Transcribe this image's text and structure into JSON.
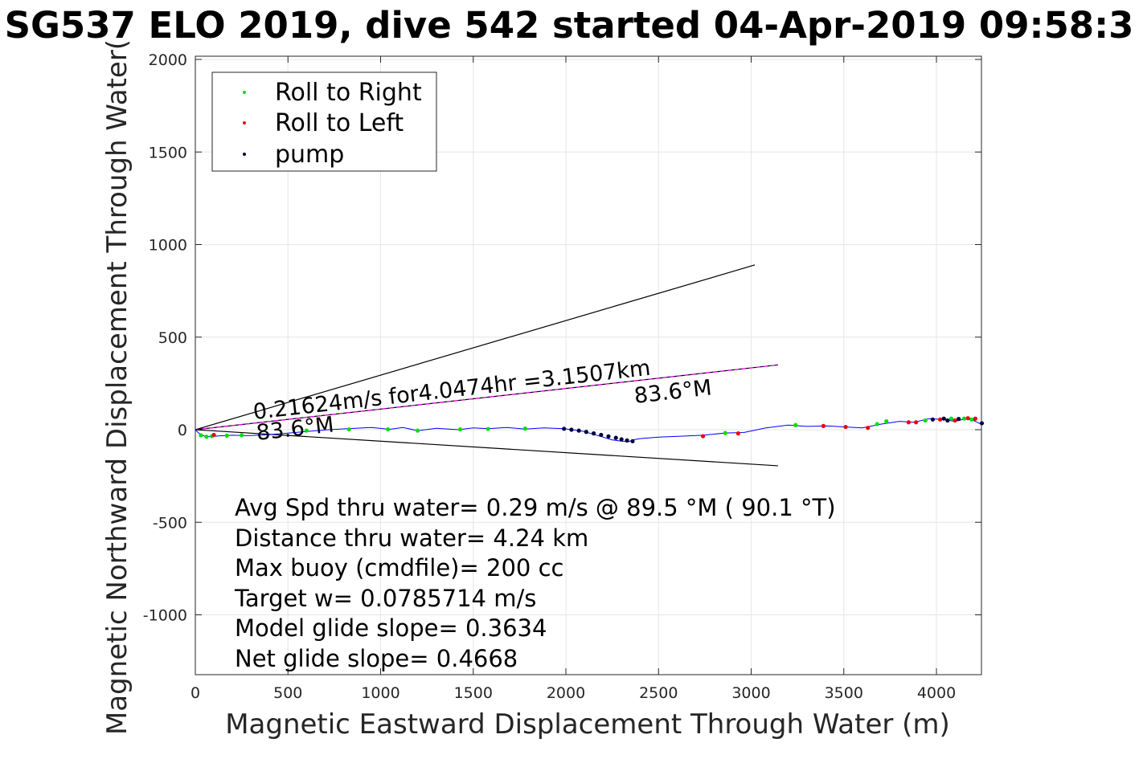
{
  "chart_data": {
    "type": "scatter",
    "title": "SG537 ELO 2019, dive 542 started 04-Apr-2019 09:58:3",
    "xlabel": "Magnetic Eastward Displacement Through Water (m)",
    "ylabel": "Magnetic Northward Displacement Through Water(",
    "xlim": [
      0,
      4250
    ],
    "ylim": [
      -1325,
      2010
    ],
    "xticks": [
      "0",
      "500",
      "1000",
      "1500",
      "2000",
      "2500",
      "3000",
      "3500",
      "4000"
    ],
    "yticks": [
      "2000",
      "1500",
      "1000",
      "500",
      "0",
      "-500",
      "-1000"
    ],
    "grid": true,
    "legend": {
      "position": "top-left",
      "entries": [
        {
          "label": "Roll to Right",
          "color": "#00dd00"
        },
        {
          "label": "Roll to Left",
          "color": "#ee0000"
        },
        {
          "label": "pump",
          "color": "#000040"
        }
      ]
    },
    "track": {
      "color": "#0000ff",
      "x": [
        0,
        20,
        50,
        80,
        130,
        200,
        280,
        380,
        480,
        600,
        720,
        820,
        950,
        1050,
        1120,
        1200,
        1300,
        1420,
        1500,
        1580,
        1680,
        1780,
        1880,
        1990,
        2050,
        2100,
        2150,
        2200,
        2250,
        2300,
        2340,
        2360,
        2400,
        2500,
        2620,
        2740,
        2860,
        2960,
        3080,
        3200,
        3300,
        3420,
        3500,
        3600,
        3700,
        3800,
        3880,
        3960,
        4040,
        4100,
        4160,
        4200,
        4230,
        4245
      ],
      "y": [
        0,
        -20,
        -35,
        -38,
        -33,
        -30,
        -32,
        -28,
        -20,
        -10,
        0,
        5,
        12,
        2,
        12,
        -5,
        8,
        0,
        10,
        5,
        12,
        3,
        10,
        5,
        -2,
        -10,
        -25,
        -40,
        -55,
        -62,
        -65,
        -55,
        -48,
        -40,
        -35,
        -30,
        -18,
        -15,
        10,
        25,
        18,
        20,
        15,
        10,
        30,
        45,
        40,
        60,
        55,
        45,
        60,
        50,
        35,
        30
      ]
    },
    "roll_right": {
      "x": [
        30,
        60,
        90,
        170,
        250,
        600,
        830,
        1040,
        1200,
        1430,
        1580,
        1780,
        2860,
        3240,
        3680,
        3730,
        3940,
        4080,
        4150,
        4190
      ],
      "y": [
        -30,
        -38,
        -35,
        -32,
        -30,
        -5,
        2,
        2,
        -5,
        2,
        4,
        6,
        -18,
        25,
        30,
        45,
        50,
        60,
        60,
        55
      ]
    },
    "roll_left": {
      "x": [
        100,
        2740,
        2930,
        3390,
        3510,
        3630,
        3850,
        3890,
        4020,
        4100,
        4170,
        4210
      ],
      "y": [
        -28,
        -35,
        -20,
        20,
        15,
        10,
        40,
        40,
        55,
        50,
        62,
        60
      ]
    },
    "pump": {
      "x": [
        1990,
        2030,
        2070,
        2110,
        2150,
        2190,
        2230,
        2270,
        2300,
        2330,
        2360,
        3980,
        4040,
        4060,
        4120,
        4245
      ],
      "y": [
        5,
        0,
        -5,
        -12,
        -20,
        -28,
        -36,
        -44,
        -52,
        -58,
        -62,
        55,
        60,
        50,
        58,
        35
      ]
    },
    "heading_lines": [
      {
        "x": [
          0,
          3020
        ],
        "y": [
          0,
          890
        ],
        "color": "#000000"
      },
      {
        "x": [
          0,
          3145
        ],
        "y": [
          0,
          350
        ],
        "color": "#000000",
        "overlay": "#ff00ff"
      },
      {
        "x": [
          0,
          3145
        ],
        "y": [
          0,
          -195
        ],
        "color": "#000000"
      }
    ],
    "annotations": {
      "speed": "0.21624m/s for4.0474hr =3.1507km",
      "heading_upper": "83.6°M",
      "heading_lower": "83.6°M"
    },
    "stats": [
      "Avg Spd thru water=  0.29 m/s @  89.5 °M ( 90.1 °T)",
      "Distance thru water=  4.24 km",
      "Max buoy (cmdfile)= 200 cc",
      "Target w= 0.0785714 m/s",
      "Model glide slope= 0.3634",
      "Net glide slope= 0.4668"
    ]
  }
}
